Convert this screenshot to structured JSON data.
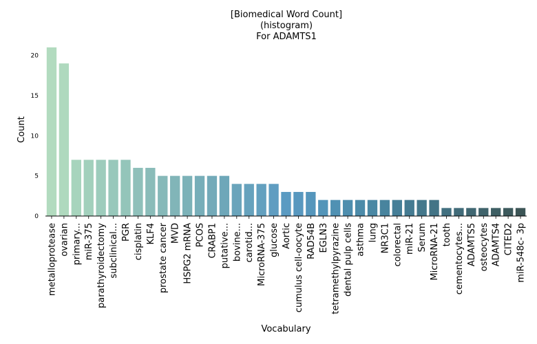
{
  "chart_data": {
    "type": "bar",
    "title_lines": [
      "[Biomedical Word Count]",
      "(histogram)",
      "For ADAMTS1"
    ],
    "xlabel": "Vocabulary",
    "ylabel": "Count",
    "ylim": [
      0,
      21.5
    ],
    "yticks": [
      0,
      5,
      10,
      15,
      20
    ],
    "grid": false,
    "categories": [
      "metalloprotease",
      "ovarian",
      "primary...",
      "miR-375",
      "parathyroidectomy",
      "subclinical...",
      "PGR",
      "cisplatin",
      "KLF4",
      "prostate cancer",
      "MVD",
      "HSPG2 mRNA",
      "PCOS",
      "CRABP1",
      "putative...",
      "bovine...",
      "carotid...",
      "MicroRNA-375",
      "glucose",
      "Aortic",
      "cumulus cell-oocyte",
      "RAD54B",
      "EGLN3",
      "tetramethylpyrazine",
      "dental pulp cells",
      "asthma",
      "lung",
      "NR3C1",
      "colorectal",
      "miR-21",
      "Serum",
      "MicroRNA-21",
      "tooth",
      "cementocytes...",
      "ADAMTS5",
      "osteocytes",
      "ADAMTS4",
      "CITED2",
      "miR-548c- 3p"
    ],
    "values": [
      21,
      19,
      7,
      7,
      7,
      7,
      7,
      6,
      6,
      5,
      5,
      5,
      5,
      5,
      5,
      4,
      4,
      4,
      4,
      3,
      3,
      3,
      2,
      2,
      2,
      2,
      2,
      2,
      2,
      2,
      2,
      2,
      1,
      1,
      1,
      1,
      1,
      1,
      1
    ],
    "colors": [
      "#b2dbbf",
      "#afd9be",
      "#a7d4bd",
      "#a2d0bc",
      "#9dccbc",
      "#98c8bb",
      "#94c5ba",
      "#8fc0ba",
      "#8abcb9",
      "#86b9b9",
      "#81b5b8",
      "#7cb2b8",
      "#77aeb9",
      "#73aab9",
      "#6ea7b9",
      "#6aa4bb",
      "#66a2bd",
      "#63a0bf",
      "#5f9dc1",
      "#5b9bc2",
      "#5898bf",
      "#5596bc",
      "#5395b9",
      "#5091b3",
      "#4e8eae",
      "#4c8ba9",
      "#4a88a4",
      "#48849e",
      "#467f98",
      "#457b92",
      "#44788c",
      "#437486",
      "#427080",
      "#416b79",
      "#406772",
      "#3f636b",
      "#3e5f64",
      "#3d5a5d",
      "#3c5556"
    ]
  }
}
